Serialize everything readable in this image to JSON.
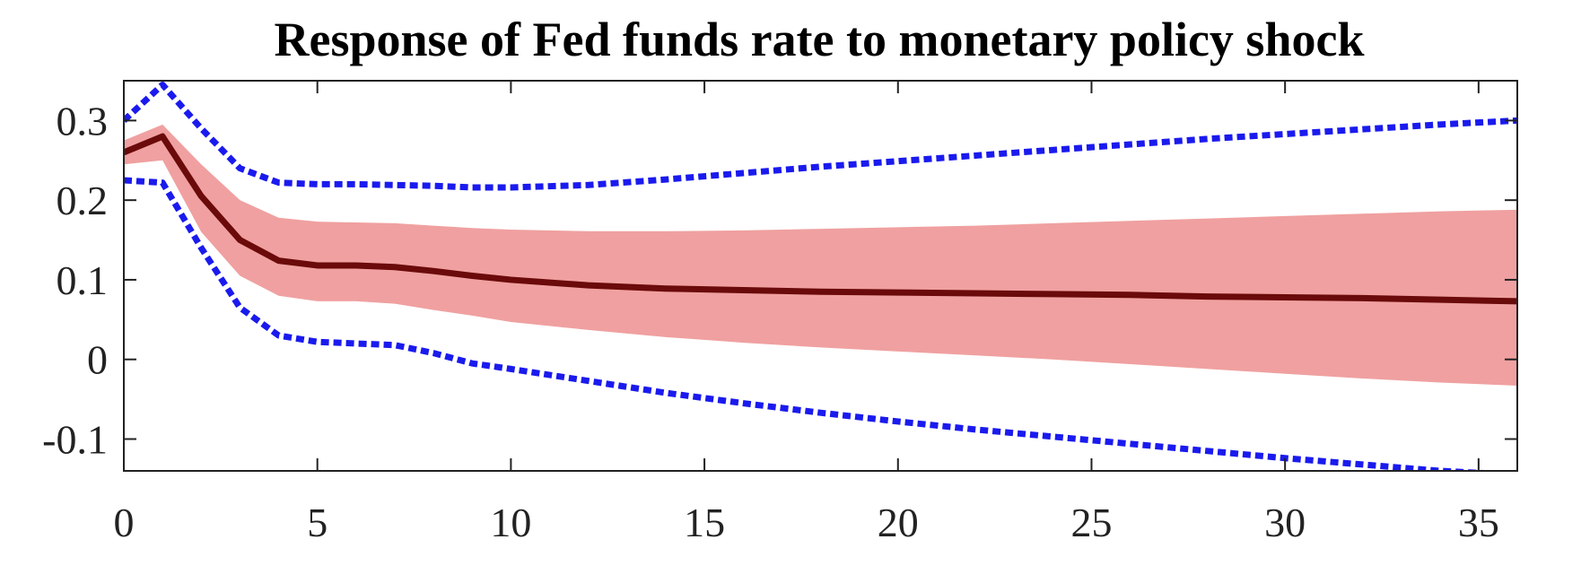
{
  "chart_data": {
    "type": "line",
    "title": "Response of Fed funds rate to monetary policy shock",
    "xlabel": "",
    "ylabel": "",
    "xlim": [
      0,
      36
    ],
    "ylim": [
      -0.14,
      0.35
    ],
    "x_ticks": [
      0,
      5,
      10,
      15,
      20,
      25,
      30,
      35
    ],
    "x_tick_labels": [
      "0",
      "5",
      "10",
      "15",
      "20",
      "25",
      "30",
      "35"
    ],
    "y_ticks": [
      0.3,
      0.2,
      0.1,
      0,
      -0.1
    ],
    "y_tick_labels": [
      "0.3",
      "0.2",
      "0.1",
      "0",
      "-0.1"
    ],
    "grid": false,
    "x": [
      0,
      1,
      2,
      3,
      4,
      5,
      6,
      7,
      8,
      9,
      10,
      12,
      14,
      16,
      18,
      20,
      22,
      24,
      26,
      28,
      30,
      32,
      34,
      36
    ],
    "series": [
      {
        "role": "median",
        "color": "#6b0a0a",
        "values": [
          0.26,
          0.28,
          0.205,
          0.15,
          0.124,
          0.118,
          0.118,
          0.116,
          0.111,
          0.105,
          0.1,
          0.093,
          0.089,
          0.087,
          0.085,
          0.084,
          0.083,
          0.082,
          0.081,
          0.079,
          0.078,
          0.077,
          0.075,
          0.073
        ]
      },
      {
        "role": "band-upper",
        "color": "#f0a0a0",
        "values": [
          0.275,
          0.295,
          0.245,
          0.2,
          0.178,
          0.173,
          0.172,
          0.171,
          0.168,
          0.165,
          0.163,
          0.161,
          0.161,
          0.162,
          0.164,
          0.166,
          0.168,
          0.171,
          0.174,
          0.177,
          0.18,
          0.183,
          0.186,
          0.188
        ]
      },
      {
        "role": "band-lower",
        "color": "#f0a0a0",
        "values": [
          0.245,
          0.25,
          0.16,
          0.105,
          0.08,
          0.073,
          0.073,
          0.07,
          0.062,
          0.055,
          0.047,
          0.037,
          0.028,
          0.021,
          0.015,
          0.01,
          0.005,
          0.0,
          -0.006,
          -0.012,
          -0.018,
          -0.024,
          -0.029,
          -0.033
        ]
      },
      {
        "role": "outer-upper",
        "color": "#1a1aee",
        "values": [
          0.3,
          0.345,
          0.29,
          0.24,
          0.222,
          0.22,
          0.22,
          0.219,
          0.218,
          0.216,
          0.216,
          0.219,
          0.226,
          0.234,
          0.242,
          0.249,
          0.256,
          0.263,
          0.27,
          0.277,
          0.283,
          0.289,
          0.295,
          0.3
        ]
      },
      {
        "role": "outer-lower",
        "color": "#1a1aee",
        "values": [
          0.225,
          0.222,
          0.14,
          0.065,
          0.03,
          0.022,
          0.02,
          0.018,
          0.008,
          -0.005,
          -0.012,
          -0.027,
          -0.042,
          -0.055,
          -0.067,
          -0.078,
          -0.088,
          -0.097,
          -0.106,
          -0.115,
          -0.124,
          -0.132,
          -0.14,
          -0.145
        ]
      }
    ]
  }
}
